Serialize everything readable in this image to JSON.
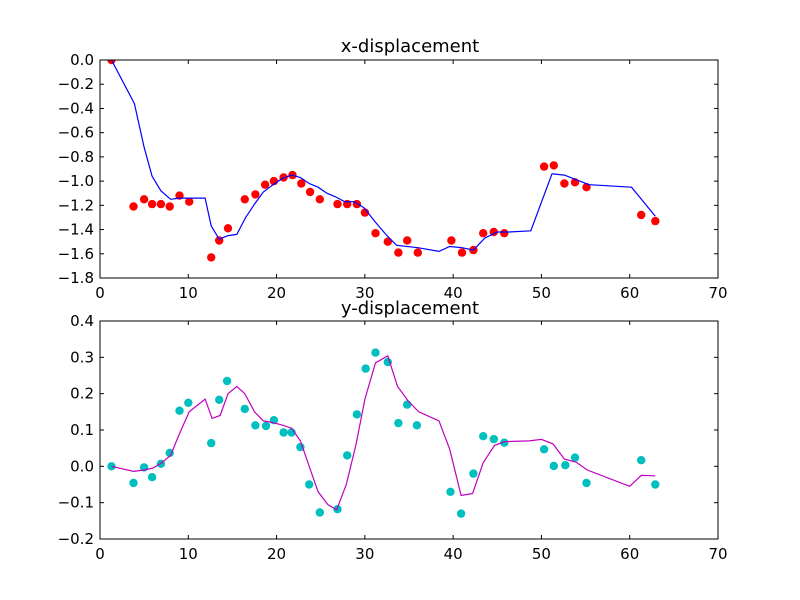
{
  "chart_data": [
    {
      "type": "scatter",
      "title": "x-displacement",
      "xlabel": "",
      "ylabel": "",
      "xlim": [
        0,
        70
      ],
      "ylim": [
        -1.8,
        0.0
      ],
      "xticks": [
        0,
        10,
        20,
        30,
        40,
        50,
        60,
        70
      ],
      "yticks": [
        -1.8,
        -1.6,
        -1.4,
        -1.2,
        -1.0,
        -0.8,
        -0.6,
        -0.4,
        -0.2,
        0.0
      ],
      "grid": false,
      "series": [
        {
          "kind": "scatter",
          "color": "#ff0000",
          "points": [
            [
              1.3,
              0.0
            ],
            [
              3.8,
              -1.21
            ],
            [
              5.0,
              -1.15
            ],
            [
              5.9,
              -1.19
            ],
            [
              6.9,
              -1.19
            ],
            [
              7.9,
              -1.21
            ],
            [
              9.0,
              -1.12
            ],
            [
              10.1,
              -1.17
            ],
            [
              12.6,
              -1.63
            ],
            [
              13.5,
              -1.49
            ],
            [
              14.5,
              -1.39
            ],
            [
              16.4,
              -1.15
            ],
            [
              17.6,
              -1.11
            ],
            [
              18.7,
              -1.03
            ],
            [
              19.7,
              -1.0
            ],
            [
              20.8,
              -0.97
            ],
            [
              21.8,
              -0.95
            ],
            [
              22.8,
              -1.02
            ],
            [
              23.8,
              -1.09
            ],
            [
              24.9,
              -1.15
            ],
            [
              26.9,
              -1.19
            ],
            [
              28.0,
              -1.19
            ],
            [
              29.1,
              -1.19
            ],
            [
              30.0,
              -1.26
            ],
            [
              31.2,
              -1.43
            ],
            [
              32.6,
              -1.5
            ],
            [
              33.8,
              -1.59
            ],
            [
              34.8,
              -1.49
            ],
            [
              36.0,
              -1.59
            ],
            [
              39.8,
              -1.49
            ],
            [
              41.0,
              -1.59
            ],
            [
              42.3,
              -1.57
            ],
            [
              43.4,
              -1.43
            ],
            [
              44.6,
              -1.42
            ],
            [
              45.8,
              -1.43
            ],
            [
              50.3,
              -0.88
            ],
            [
              51.4,
              -0.87
            ],
            [
              52.6,
              -1.02
            ],
            [
              53.8,
              -1.01
            ],
            [
              55.1,
              -1.05
            ],
            [
              61.3,
              -1.28
            ],
            [
              62.9,
              -1.33
            ]
          ]
        },
        {
          "kind": "line",
          "color": "#0000ff",
          "points": [
            [
              1.3,
              0.0
            ],
            [
              3.9,
              -0.36
            ],
            [
              5.0,
              -0.72
            ],
            [
              5.9,
              -0.96
            ],
            [
              6.9,
              -1.08
            ],
            [
              8.0,
              -1.15
            ],
            [
              9.0,
              -1.14
            ],
            [
              10.3,
              -1.14
            ],
            [
              11.9,
              -1.14
            ],
            [
              12.6,
              -1.37
            ],
            [
              13.5,
              -1.48
            ],
            [
              14.5,
              -1.45
            ],
            [
              15.5,
              -1.44
            ],
            [
              16.5,
              -1.3
            ],
            [
              17.5,
              -1.19
            ],
            [
              18.5,
              -1.09
            ],
            [
              19.6,
              -1.03
            ],
            [
              20.6,
              -0.98
            ],
            [
              21.7,
              -0.95
            ],
            [
              22.7,
              -0.97
            ],
            [
              23.7,
              -1.02
            ],
            [
              24.7,
              -1.05
            ],
            [
              25.7,
              -1.1
            ],
            [
              26.7,
              -1.13
            ],
            [
              27.7,
              -1.17
            ],
            [
              28.8,
              -1.17
            ],
            [
              29.9,
              -1.22
            ],
            [
              31.2,
              -1.34
            ],
            [
              32.5,
              -1.45
            ],
            [
              33.6,
              -1.53
            ],
            [
              36.0,
              -1.55
            ],
            [
              38.4,
              -1.58
            ],
            [
              39.6,
              -1.54
            ],
            [
              41.0,
              -1.55
            ],
            [
              42.3,
              -1.57
            ],
            [
              43.6,
              -1.47
            ],
            [
              45.0,
              -1.42
            ],
            [
              46.3,
              -1.42
            ],
            [
              48.8,
              -1.41
            ],
            [
              51.2,
              -0.94
            ],
            [
              52.6,
              -0.95
            ],
            [
              54.0,
              -0.99
            ],
            [
              55.4,
              -1.03
            ],
            [
              60.2,
              -1.05
            ],
            [
              62.9,
              -1.29
            ]
          ]
        }
      ]
    },
    {
      "type": "scatter",
      "title": "y-displacement",
      "xlabel": "",
      "ylabel": "",
      "xlim": [
        0,
        70
      ],
      "ylim": [
        -0.2,
        0.4
      ],
      "xticks": [
        0,
        10,
        20,
        30,
        40,
        50,
        60,
        70
      ],
      "yticks": [
        -0.2,
        -0.1,
        0.0,
        0.1,
        0.2,
        0.3,
        0.4
      ],
      "grid": false,
      "series": [
        {
          "kind": "scatter",
          "color": "#00bfbf",
          "points": [
            [
              1.3,
              0.0
            ],
            [
              3.8,
              -0.046
            ],
            [
              5.0,
              -0.003
            ],
            [
              5.9,
              -0.03
            ],
            [
              6.9,
              0.007
            ],
            [
              7.9,
              0.037
            ],
            [
              9.0,
              0.153
            ],
            [
              10.0,
              0.175
            ],
            [
              12.6,
              0.064
            ],
            [
              13.5,
              0.183
            ],
            [
              14.4,
              0.235
            ],
            [
              16.4,
              0.158
            ],
            [
              17.6,
              0.113
            ],
            [
              18.8,
              0.111
            ],
            [
              19.7,
              0.127
            ],
            [
              20.8,
              0.093
            ],
            [
              21.7,
              0.093
            ],
            [
              22.7,
              0.053
            ],
            [
              23.7,
              -0.05
            ],
            [
              24.9,
              -0.127
            ],
            [
              26.9,
              -0.118
            ],
            [
              28.0,
              0.03
            ],
            [
              29.1,
              0.143
            ],
            [
              30.1,
              0.269
            ],
            [
              31.2,
              0.313
            ],
            [
              32.6,
              0.287
            ],
            [
              33.8,
              0.119
            ],
            [
              34.8,
              0.17
            ],
            [
              35.9,
              0.113
            ],
            [
              39.7,
              -0.07
            ],
            [
              40.9,
              -0.13
            ],
            [
              42.3,
              -0.02
            ],
            [
              43.4,
              0.083
            ],
            [
              44.6,
              0.075
            ],
            [
              45.8,
              0.065
            ],
            [
              50.3,
              0.047
            ],
            [
              51.4,
              0.001
            ],
            [
              52.7,
              0.003
            ],
            [
              53.8,
              0.024
            ],
            [
              55.1,
              -0.046
            ],
            [
              61.3,
              0.017
            ],
            [
              62.9,
              -0.05
            ]
          ]
        },
        {
          "kind": "line",
          "color": "#bf00bf",
          "points": [
            [
              1.3,
              0.0
            ],
            [
              3.8,
              -0.014
            ],
            [
              5.0,
              -0.01
            ],
            [
              6.0,
              -0.005
            ],
            [
              7.0,
              0.01
            ],
            [
              8.0,
              0.03
            ],
            [
              9.0,
              0.09
            ],
            [
              10.1,
              0.15
            ],
            [
              11.9,
              0.185
            ],
            [
              12.7,
              0.132
            ],
            [
              13.6,
              0.14
            ],
            [
              14.5,
              0.2
            ],
            [
              15.5,
              0.22
            ],
            [
              16.4,
              0.2
            ],
            [
              17.5,
              0.15
            ],
            [
              18.5,
              0.125
            ],
            [
              19.6,
              0.12
            ],
            [
              20.6,
              0.114
            ],
            [
              21.7,
              0.105
            ],
            [
              22.7,
              0.07
            ],
            [
              23.7,
              0.0
            ],
            [
              24.7,
              -0.07
            ],
            [
              25.8,
              -0.105
            ],
            [
              26.8,
              -0.12
            ],
            [
              27.9,
              -0.05
            ],
            [
              29.0,
              0.06
            ],
            [
              30.0,
              0.185
            ],
            [
              31.2,
              0.285
            ],
            [
              32.6,
              0.304
            ],
            [
              33.7,
              0.22
            ],
            [
              34.9,
              0.18
            ],
            [
              36.1,
              0.15
            ],
            [
              38.4,
              0.125
            ],
            [
              39.6,
              0.048
            ],
            [
              40.9,
              -0.08
            ],
            [
              42.2,
              -0.075
            ],
            [
              43.4,
              0.01
            ],
            [
              44.7,
              0.058
            ],
            [
              45.9,
              0.068
            ],
            [
              48.6,
              0.07
            ],
            [
              50.0,
              0.074
            ],
            [
              51.3,
              0.062
            ],
            [
              52.6,
              0.02
            ],
            [
              53.9,
              0.012
            ],
            [
              55.2,
              -0.01
            ],
            [
              60.0,
              -0.055
            ],
            [
              61.3,
              -0.025
            ],
            [
              62.9,
              -0.026
            ]
          ]
        }
      ]
    }
  ]
}
